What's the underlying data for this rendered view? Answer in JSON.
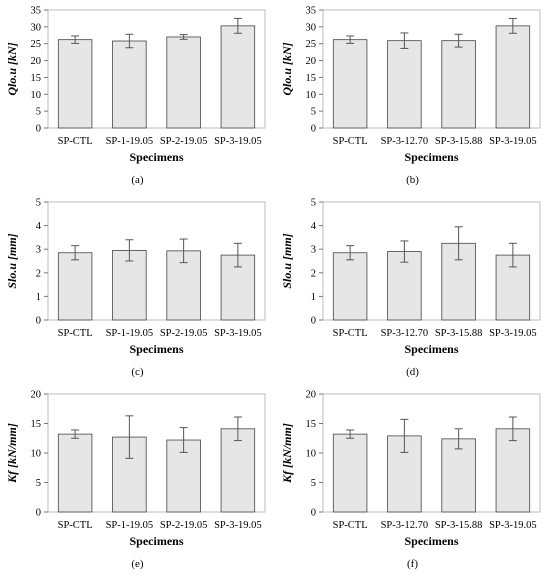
{
  "chart_data": [
    {
      "id": "a",
      "type": "bar",
      "caption": "(a)",
      "ylabel": "Qlo.u [kN]",
      "xlabel": "Specimens",
      "ylim": [
        0,
        35
      ],
      "yticks": [
        0,
        5,
        10,
        15,
        20,
        25,
        30,
        35
      ],
      "grid": false,
      "bar_color": "#e6e6e6",
      "categories": [
        "SP-CTL",
        "SP-1-19.05",
        "SP-2-19.05",
        "SP-3-19.05"
      ],
      "values": [
        26.2,
        25.8,
        27.0,
        30.3
      ],
      "errors": [
        1.1,
        2.0,
        0.7,
        2.2
      ]
    },
    {
      "id": "b",
      "type": "bar",
      "caption": "(b)",
      "ylabel": "Qlo.u [kN]",
      "xlabel": "Specimens",
      "ylim": [
        0,
        35
      ],
      "yticks": [
        0,
        5,
        10,
        15,
        20,
        25,
        30,
        35
      ],
      "grid": false,
      "bar_color": "#e6e6e6",
      "categories": [
        "SP-CTL",
        "SP-3-12.70",
        "SP-3-15.88",
        "SP-3-19.05"
      ],
      "values": [
        26.2,
        25.9,
        25.9,
        30.3
      ],
      "errors": [
        1.1,
        2.3,
        1.9,
        2.2
      ]
    },
    {
      "id": "c",
      "type": "bar",
      "caption": "(c)",
      "ylabel": "Slo.u [mm]",
      "xlabel": "Specimens",
      "ylim": [
        0,
        5
      ],
      "yticks": [
        0,
        1,
        2,
        3,
        4,
        5
      ],
      "grid": false,
      "bar_color": "#e6e6e6",
      "categories": [
        "SP-CTL",
        "SP-1-19.05",
        "SP-2-19.05",
        "SP-3-19.05"
      ],
      "values": [
        2.85,
        2.95,
        2.93,
        2.75
      ],
      "errors": [
        0.3,
        0.45,
        0.5,
        0.5
      ]
    },
    {
      "id": "d",
      "type": "bar",
      "caption": "(d)",
      "ylabel": "Slo.u [mm]",
      "xlabel": "Specimens",
      "ylim": [
        0,
        5
      ],
      "yticks": [
        0,
        1,
        2,
        3,
        4,
        5
      ],
      "grid": false,
      "bar_color": "#e6e6e6",
      "categories": [
        "SP-CTL",
        "SP-3-12.70",
        "SP-3-15.88",
        "SP-3-19.05"
      ],
      "values": [
        2.85,
        2.9,
        3.25,
        2.75
      ],
      "errors": [
        0.3,
        0.45,
        0.7,
        0.5
      ]
    },
    {
      "id": "e",
      "type": "bar",
      "caption": "(e)",
      "ylabel": "Kf [kN/mm]",
      "xlabel": "Specimens",
      "ylim": [
        0,
        20
      ],
      "yticks": [
        0,
        5,
        10,
        15,
        20
      ],
      "grid": false,
      "bar_color": "#e6e6e6",
      "categories": [
        "SP-CTL",
        "SP-1-19.05",
        "SP-2-19.05",
        "SP-3-19.05"
      ],
      "values": [
        13.2,
        12.7,
        12.2,
        14.1
      ],
      "errors": [
        0.7,
        3.6,
        2.1,
        2.0
      ]
    },
    {
      "id": "f",
      "type": "bar",
      "caption": "(f)",
      "ylabel": "Kf [kN/mm]",
      "xlabel": "Specimens",
      "ylim": [
        0,
        20
      ],
      "yticks": [
        0,
        5,
        10,
        15,
        20
      ],
      "grid": false,
      "bar_color": "#e6e6e6",
      "categories": [
        "SP-CTL",
        "SP-3-12.70",
        "SP-3-15.88",
        "SP-3-19.05"
      ],
      "values": [
        13.2,
        12.9,
        12.4,
        14.1
      ],
      "errors": [
        0.7,
        2.8,
        1.7,
        2.0
      ]
    }
  ]
}
